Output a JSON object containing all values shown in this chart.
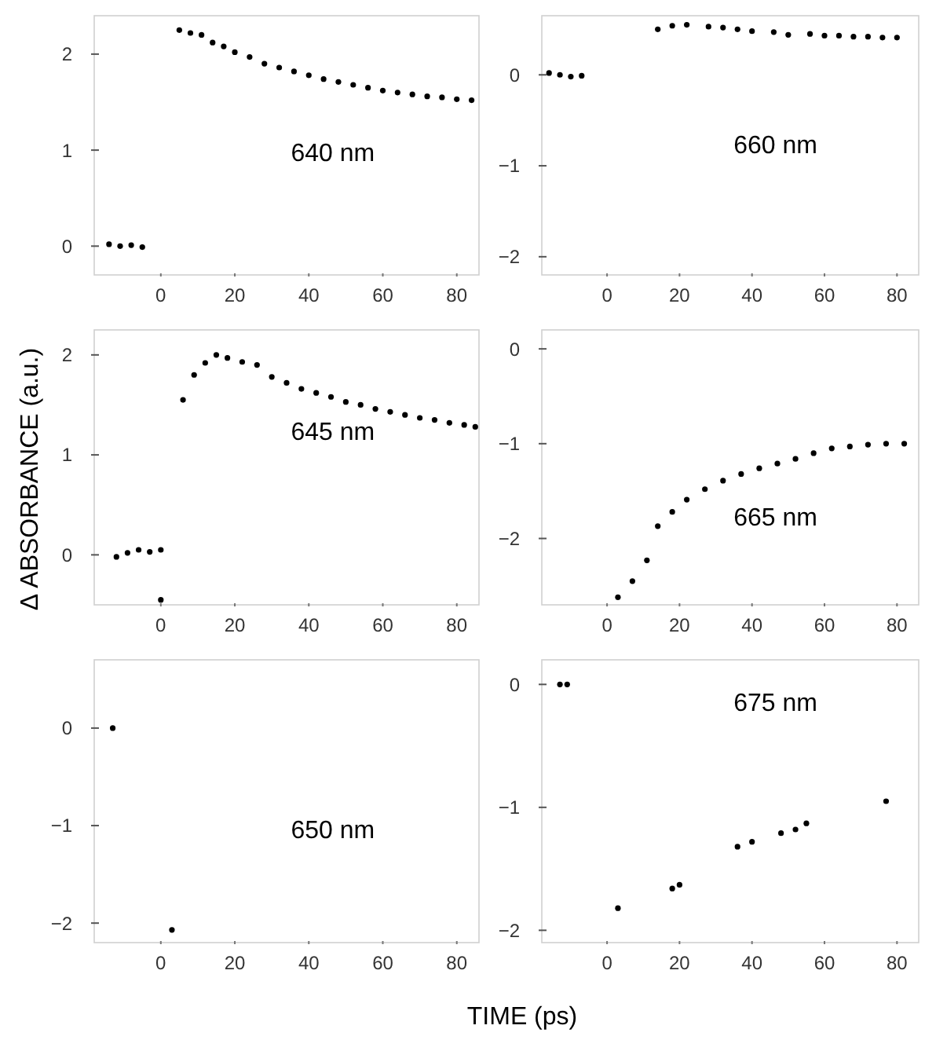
{
  "chart_data": [
    {
      "type": "scatter",
      "title": "640 nm",
      "xlim": [
        -18,
        86
      ],
      "ylim": [
        -0.3,
        2.4
      ],
      "xticks": [
        0,
        20,
        40,
        60,
        80
      ],
      "yticks": [
        0,
        1,
        2
      ],
      "marker": "circle",
      "series": [
        {
          "color": "#000000",
          "x": [
            -14,
            -11,
            -8,
            -5,
            5,
            8,
            11,
            14,
            17,
            20,
            24,
            28,
            32,
            36,
            40,
            44,
            48,
            52,
            56,
            60,
            64,
            68,
            72,
            76,
            80,
            84
          ],
          "values": [
            0.02,
            0,
            0.01,
            -0.01,
            2.25,
            2.22,
            2.2,
            2.12,
            2.08,
            2.02,
            1.97,
            1.9,
            1.86,
            1.82,
            1.78,
            1.74,
            1.71,
            1.68,
            1.65,
            1.62,
            1.6,
            1.58,
            1.56,
            1.55,
            1.53,
            1.52
          ]
        }
      ]
    },
    {
      "type": "scatter",
      "title": "660 nm",
      "xlim": [
        -18,
        86
      ],
      "ylim": [
        -2.2,
        0.65
      ],
      "xticks": [
        0,
        20,
        40,
        60,
        80
      ],
      "yticks": [
        0,
        -1,
        -2
      ],
      "marker": "circle",
      "series": [
        {
          "color": "#000000",
          "x": [
            -16,
            -13,
            -10,
            -7,
            14,
            18,
            22,
            28,
            32,
            36,
            40,
            46,
            50,
            56,
            60,
            64,
            68,
            72,
            76,
            80
          ],
          "values": [
            0.02,
            0,
            -0.02,
            -0.01,
            0.5,
            0.54,
            0.55,
            0.53,
            0.52,
            0.5,
            0.48,
            0.47,
            0.44,
            0.45,
            0.43,
            0.43,
            0.42,
            0.42,
            0.41,
            0.41
          ]
        }
      ]
    },
    {
      "type": "scatter",
      "title": "645 nm",
      "ylabel": "Δ ABSORBANCE (a.u.)",
      "xlim": [
        -18,
        86
      ],
      "ylim": [
        -0.5,
        2.25
      ],
      "xticks": [
        0,
        20,
        40,
        60,
        80
      ],
      "yticks": [
        0,
        1,
        2
      ],
      "marker": "circle",
      "series": [
        {
          "color": "#000000",
          "x": [
            -12,
            -9,
            -6,
            -3,
            0,
            0,
            6,
            9,
            12,
            15,
            18,
            22,
            26,
            30,
            34,
            38,
            42,
            46,
            50,
            54,
            58,
            62,
            66,
            70,
            74,
            78,
            82,
            85
          ],
          "values": [
            -0.02,
            0.02,
            0.05,
            0.03,
            0.05,
            -0.45,
            1.55,
            1.8,
            1.92,
            2.0,
            1.97,
            1.93,
            1.9,
            1.78,
            1.72,
            1.66,
            1.62,
            1.58,
            1.53,
            1.5,
            1.46,
            1.43,
            1.4,
            1.37,
            1.35,
            1.32,
            1.3,
            1.28
          ]
        }
      ]
    },
    {
      "type": "scatter",
      "title": "665 nm",
      "xlim": [
        -18,
        86
      ],
      "ylim": [
        -2.7,
        0.2
      ],
      "xticks": [
        0,
        20,
        40,
        60,
        80
      ],
      "yticks": [
        0,
        -1,
        -2
      ],
      "marker": "circle",
      "series": [
        {
          "color": "#000000",
          "x": [
            3,
            7,
            11,
            14,
            18,
            22,
            27,
            32,
            37,
            42,
            47,
            52,
            57,
            62,
            67,
            72,
            77,
            82
          ],
          "values": [
            -2.62,
            -2.45,
            -2.23,
            -1.87,
            -1.72,
            -1.59,
            -1.48,
            -1.39,
            -1.32,
            -1.26,
            -1.21,
            -1.16,
            -1.1,
            -1.05,
            -1.03,
            -1.01,
            -1.0,
            -1.0
          ]
        }
      ]
    },
    {
      "type": "scatter",
      "title": "650 nm",
      "xlabel": "TIME (ps)",
      "xlim": [
        -18,
        86
      ],
      "ylim": [
        -2.2,
        0.7
      ],
      "xticks": [
        0,
        20,
        40,
        60,
        80
      ],
      "yticks": [
        0,
        -1,
        -2
      ],
      "marker": "circle",
      "series": [
        {
          "color": "#000000",
          "x": [
            -13,
            3
          ],
          "values": [
            0,
            -2.07
          ]
        }
      ]
    },
    {
      "type": "scatter",
      "title": "675 nm",
      "xlim": [
        -18,
        86
      ],
      "ylim": [
        -2.1,
        0.2
      ],
      "xticks": [
        0,
        20,
        40,
        60,
        80
      ],
      "yticks": [
        0,
        -1,
        -2
      ],
      "marker": "circle",
      "series": [
        {
          "color": "#000000",
          "x": [
            -13,
            -11,
            3,
            18,
            20,
            36,
            40,
            48,
            52,
            55,
            77
          ],
          "values": [
            0,
            0,
            -1.82,
            -1.66,
            -1.63,
            -1.32,
            -1.28,
            -1.21,
            -1.18,
            -1.13,
            -0.95
          ]
        }
      ]
    }
  ]
}
